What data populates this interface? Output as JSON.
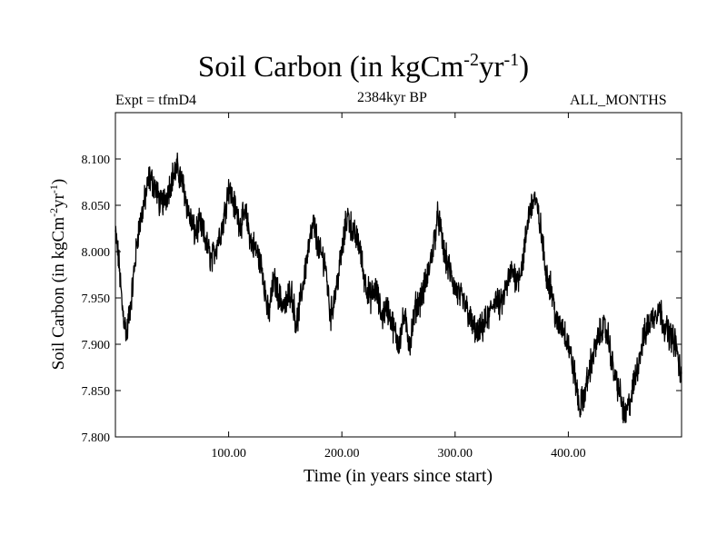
{
  "header": {
    "title_main": "Soil Carbon (in kgCm",
    "title_exp1": "-2",
    "title_mid": "yr",
    "title_exp2": "-1",
    "title_end": ")",
    "expt": "Expt = tfmD4",
    "period": "2384kyr BP",
    "months": "ALL_MONTHS"
  },
  "chart_data": {
    "type": "line",
    "title": "Soil Carbon (in kgCm-2yr-1)",
    "xlabel": "Time (in years since start)",
    "ylabel": "Soil Carbon (in kgCm-2yr-1)",
    "ylabel_parts": {
      "main": "Soil Carbon (in kgCm",
      "exp1": "-2",
      "mid": "yr",
      "exp2": "-1",
      "end": ")"
    },
    "xlim": [
      0,
      500
    ],
    "ylim": [
      7.8,
      8.15
    ],
    "x_ticks": [
      100,
      200,
      300,
      400
    ],
    "x_tick_labels": [
      "100.00",
      "200.00",
      "300.00",
      "400.00"
    ],
    "y_ticks": [
      7.8,
      7.85,
      7.9,
      7.95,
      8.0,
      8.05,
      8.1
    ],
    "y_tick_labels": [
      "7.800",
      "7.850",
      "7.900",
      "7.950",
      "8.000",
      "8.050",
      "8.100"
    ],
    "series": [
      {
        "name": "Soil Carbon",
        "color": "#000000",
        "x": [
          0,
          3,
          6,
          10,
          15,
          20,
          25,
          30,
          35,
          40,
          45,
          50,
          55,
          60,
          65,
          70,
          75,
          80,
          85,
          90,
          95,
          100,
          105,
          110,
          115,
          120,
          125,
          130,
          135,
          140,
          145,
          150,
          155,
          160,
          165,
          170,
          175,
          180,
          185,
          190,
          195,
          200,
          205,
          210,
          215,
          220,
          225,
          230,
          235,
          240,
          245,
          250,
          255,
          260,
          265,
          270,
          275,
          280,
          285,
          290,
          295,
          300,
          305,
          310,
          315,
          320,
          325,
          330,
          335,
          340,
          345,
          350,
          355,
          360,
          365,
          370,
          375,
          380,
          385,
          390,
          395,
          400,
          405,
          410,
          415,
          420,
          425,
          430,
          435,
          440,
          445,
          450,
          455,
          460,
          465,
          470,
          475,
          480,
          485,
          490,
          495,
          500
        ],
        "y": [
          8.02,
          7.99,
          7.94,
          7.91,
          7.96,
          8.02,
          8.05,
          8.08,
          8.07,
          8.05,
          8.06,
          8.08,
          8.09,
          8.07,
          8.04,
          8.02,
          8.03,
          8.01,
          7.99,
          8.01,
          8.03,
          8.07,
          8.05,
          8.03,
          8.04,
          8.01,
          8.0,
          7.98,
          7.93,
          7.97,
          7.95,
          7.94,
          7.96,
          7.92,
          7.96,
          8.0,
          8.03,
          8.0,
          7.99,
          7.93,
          7.96,
          8.0,
          8.04,
          8.02,
          8.01,
          7.97,
          7.95,
          7.96,
          7.93,
          7.94,
          7.92,
          7.9,
          7.93,
          7.9,
          7.94,
          7.95,
          7.97,
          8.0,
          8.04,
          8.0,
          7.98,
          7.96,
          7.95,
          7.94,
          7.92,
          7.91,
          7.92,
          7.93,
          7.95,
          7.94,
          7.96,
          7.98,
          7.97,
          7.99,
          8.04,
          8.06,
          8.03,
          7.98,
          7.96,
          7.92,
          7.92,
          7.9,
          7.87,
          7.83,
          7.85,
          7.88,
          7.9,
          7.92,
          7.91,
          7.87,
          7.85,
          7.82,
          7.84,
          7.87,
          7.9,
          7.92,
          7.93,
          7.94,
          7.92,
          7.91,
          7.9,
          7.86
        ],
        "noise_amplitude": 0.013
      }
    ],
    "grid": false,
    "legend": "none"
  }
}
